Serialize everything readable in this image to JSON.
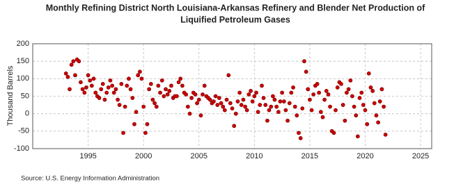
{
  "chart_data": {
    "type": "scatter",
    "title_lines": [
      "Monthly Refining District North Louisiana-Arkansas Refinery and Blender Net Production of",
      "Liquified Petroleum Gases"
    ],
    "ylabel": "Thousand Barrels",
    "source": "Source: U.S. Energy Information Administration",
    "xlim": [
      1990,
      2026
    ],
    "xticks": [
      1995,
      2000,
      2005,
      2010,
      2015,
      2020,
      2025
    ],
    "ylim": [
      -100,
      200
    ],
    "yticks": [
      -100,
      -50,
      0,
      50,
      100,
      150,
      200
    ],
    "grid": true,
    "series": [
      {
        "color": "#cc0000",
        "x": [
          1993,
          1993.17,
          1993.33,
          1993.5,
          1993.67,
          1993.83,
          1994,
          1994.17,
          1994.33,
          1994.5,
          1994.67,
          1994.83,
          1995,
          1995.17,
          1995.33,
          1995.5,
          1995.67,
          1995.83,
          1996,
          1996.17,
          1996.33,
          1996.5,
          1996.67,
          1996.83,
          1997,
          1997.17,
          1997.33,
          1997.5,
          1997.67,
          1997.83,
          1998,
          1998.17,
          1998.33,
          1998.5,
          1998.67,
          1998.83,
          1999,
          1999.17,
          1999.33,
          1999.5,
          1999.67,
          1999.83,
          2000,
          2000.17,
          2000.33,
          2000.5,
          2000.67,
          2000.83,
          2001,
          2001.17,
          2001.33,
          2001.5,
          2001.67,
          2001.83,
          2002,
          2002.17,
          2002.33,
          2002.5,
          2002.67,
          2002.83,
          2003,
          2003.17,
          2003.33,
          2003.5,
          2003.67,
          2003.83,
          2004,
          2004.17,
          2004.33,
          2004.5,
          2004.67,
          2004.83,
          2005,
          2005.17,
          2005.33,
          2005.5,
          2005.67,
          2005.83,
          2006,
          2006.17,
          2006.33,
          2006.5,
          2006.67,
          2006.83,
          2007,
          2007.17,
          2007.33,
          2007.5,
          2007.67,
          2007.83,
          2008,
          2008.17,
          2008.33,
          2008.5,
          2008.67,
          2008.83,
          2009,
          2009.17,
          2009.33,
          2009.5,
          2009.67,
          2009.83,
          2010,
          2010.17,
          2010.33,
          2010.5,
          2010.67,
          2010.83,
          2011,
          2011.17,
          2011.33,
          2011.5,
          2011.67,
          2011.83,
          2012,
          2012.17,
          2012.33,
          2012.5,
          2012.67,
          2012.83,
          2013,
          2013.17,
          2013.33,
          2013.5,
          2013.67,
          2013.83,
          2014,
          2014.17,
          2014.33,
          2014.5,
          2014.67,
          2014.83,
          2015,
          2015.17,
          2015.33,
          2015.5,
          2015.67,
          2015.83,
          2016,
          2016.17,
          2016.33,
          2016.5,
          2016.67,
          2016.83,
          2017,
          2017.17,
          2017.33,
          2017.5,
          2017.67,
          2017.83,
          2018,
          2018.17,
          2018.33,
          2018.5,
          2018.67,
          2018.83,
          2019,
          2019.17,
          2019.33,
          2019.5,
          2019.67,
          2019.83,
          2020,
          2020.17,
          2020.33,
          2020.5,
          2020.67,
          2020.83,
          2021,
          2021.17,
          2021.33,
          2021.5,
          2021.67,
          2021.83
        ],
        "values": [
          115,
          105,
          70,
          140,
          150,
          110,
          155,
          150,
          90,
          70,
          60,
          75,
          110,
          95,
          80,
          100,
          60,
          50,
          45,
          70,
          85,
          40,
          60,
          75,
          95,
          80,
          60,
          70,
          40,
          25,
          85,
          -55,
          20,
          80,
          100,
          70,
          45,
          -30,
          5,
          110,
          120,
          100,
          20,
          -55,
          -30,
          70,
          85,
          40,
          30,
          20,
          80,
          60,
          95,
          50,
          70,
          55,
          65,
          80,
          45,
          50,
          50,
          90,
          100,
          80,
          60,
          55,
          20,
          0,
          45,
          60,
          55,
          30,
          40,
          -5,
          55,
          80,
          50,
          45,
          40,
          30,
          35,
          50,
          25,
          45,
          30,
          20,
          10,
          40,
          110,
          30,
          15,
          -35,
          0,
          35,
          60,
          25,
          40,
          20,
          10,
          55,
          65,
          35,
          50,
          60,
          5,
          25,
          80,
          45,
          25,
          -20,
          10,
          20,
          50,
          40,
          20,
          5,
          35,
          60,
          35,
          10,
          -20,
          30,
          60,
          75,
          20,
          -5,
          -55,
          -70,
          15,
          150,
          120,
          70,
          40,
          10,
          55,
          80,
          85,
          60,
          5,
          -10,
          40,
          65,
          55,
          20,
          -50,
          -55,
          10,
          75,
          90,
          85,
          25,
          -20,
          60,
          70,
          95,
          50,
          20,
          -5,
          -65,
          45,
          60,
          25,
          10,
          -30,
          115,
          75,
          65,
          30,
          -5,
          -25,
          35,
          70,
          20,
          -60
        ]
      }
    ]
  }
}
